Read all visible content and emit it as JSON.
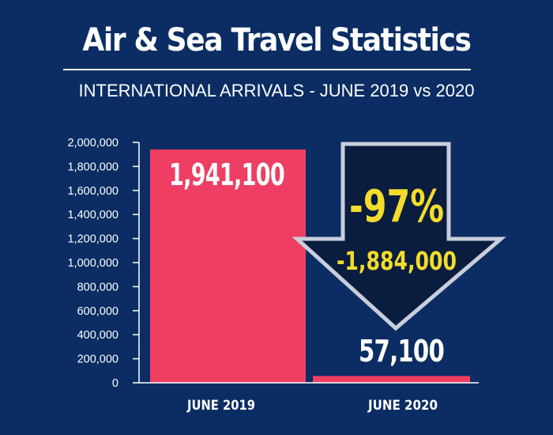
{
  "header": {
    "title": "Air & Sea Travel Statistics",
    "subtitle": "INTERNATIONAL ARRIVALS - JUNE 2019 vs 2020"
  },
  "colors": {
    "background": "#0b2d63",
    "bar": "#ef3e64",
    "arrow_fill": "#0a1d3f",
    "arrow_stroke": "#c8cedb",
    "highlight_text": "#f3dc2b",
    "text": "#ffffff"
  },
  "callout": {
    "icon": "down-arrow-icon",
    "percent_change": "-97%",
    "absolute_change": "-1,884,000"
  },
  "chart_data": {
    "type": "bar",
    "categories": [
      "JUNE 2019",
      "JUNE 2020"
    ],
    "values": [
      1941100,
      57100
    ],
    "value_labels": [
      "1,941,100",
      "57,100"
    ],
    "ylim": [
      0,
      2000000
    ],
    "yticks": [
      0,
      200000,
      400000,
      600000,
      800000,
      1000000,
      1200000,
      1400000,
      1600000,
      1800000,
      2000000
    ],
    "ytick_labels": [
      "0",
      "200,000",
      "400,000",
      "600,000",
      "800,000",
      "1,000,000",
      "1,200,000",
      "1,400,000",
      "1,600,000",
      "1,800,000",
      "2,000,000"
    ],
    "grid": false,
    "xlabel": "",
    "ylabel": ""
  }
}
